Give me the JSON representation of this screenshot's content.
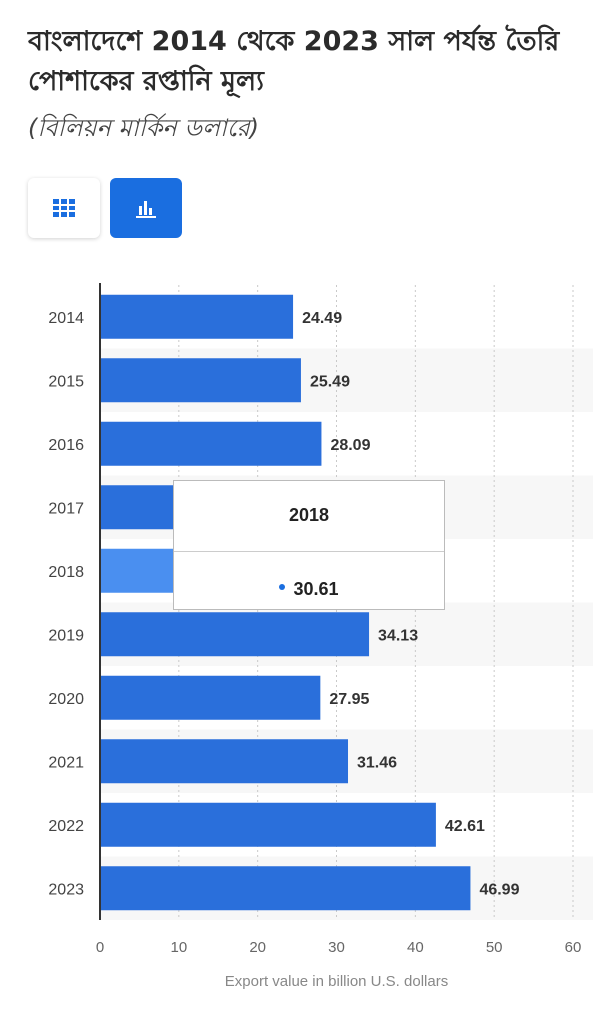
{
  "header": {
    "title": "বাংলাদেশে 2014 থেকে 2023 সাল পর্যন্ত তৈরি পোশাকের রপ্তানি মূল্য",
    "subtitle": "(বিলিয়ন মার্কিন ডলারে)"
  },
  "toolbar": {
    "table_icon": "grid-icon",
    "chart_icon": "bar-chart-icon",
    "active": "chart"
  },
  "colors": {
    "bar": "#2a6fdb",
    "bar_highlight": "#4a8ff0",
    "accent": "#1a6ee0"
  },
  "tooltip": {
    "title": "2018",
    "value": "30.61"
  },
  "chart_data": {
    "type": "bar",
    "orientation": "horizontal",
    "categories": [
      "2014",
      "2015",
      "2016",
      "2017",
      "2018",
      "2019",
      "2020",
      "2021",
      "2022",
      "2023"
    ],
    "values": [
      24.49,
      25.49,
      28.09,
      29.21,
      30.61,
      34.13,
      27.95,
      31.46,
      42.61,
      46.99
    ],
    "labels": [
      "24.49",
      "25.49",
      "28.09",
      "",
      "",
      "34.13",
      "27.95",
      "31.46",
      "42.61",
      "46.99"
    ],
    "highlighted": "2018",
    "xlabel": "Export value in billion U.S. dollars",
    "xlim": [
      0,
      60
    ],
    "xticks": [
      "0",
      "10",
      "20",
      "30",
      "40",
      "50",
      "60"
    ],
    "grid": true
  }
}
